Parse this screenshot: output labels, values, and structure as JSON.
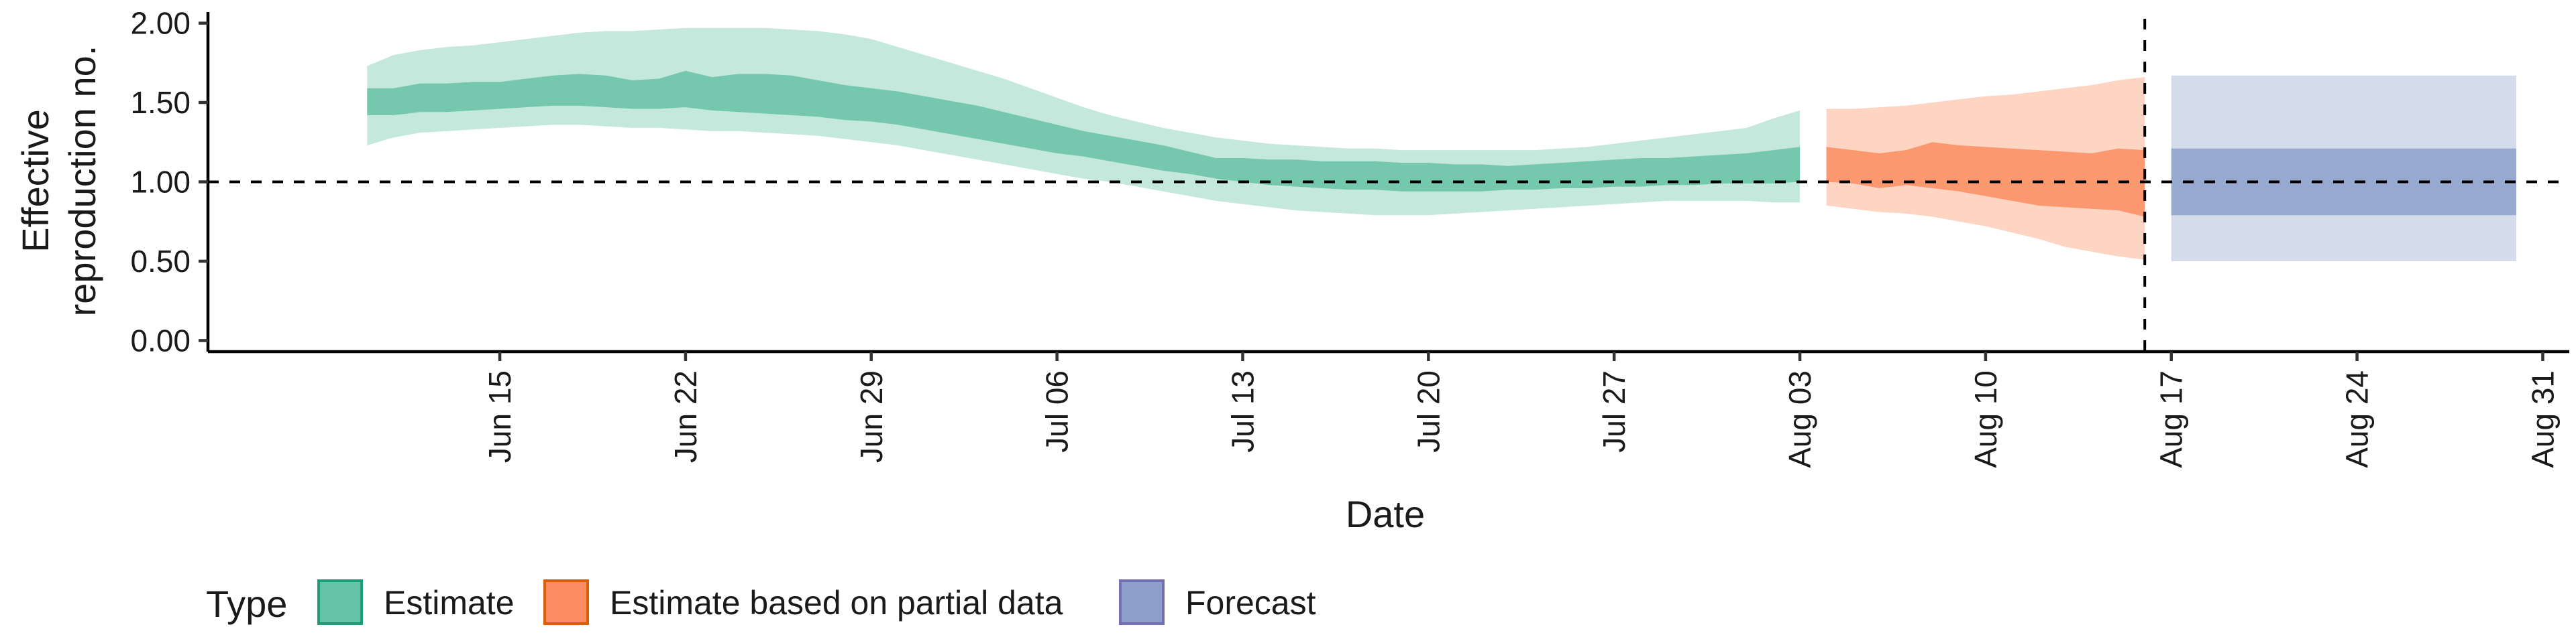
{
  "chart_data": {
    "type": "area",
    "xlabel": "Date",
    "ylabel": "Effective reproduction no.",
    "ylabel_lines": [
      "Effective",
      "reproduction no."
    ],
    "ylim": [
      -0.07,
      2.07
    ],
    "yticks": [
      0.0,
      0.5,
      1.0,
      1.5,
      2.0
    ],
    "ytick_labels": [
      "0.00",
      "0.50",
      "1.00",
      "1.50",
      "2.00"
    ],
    "xlim": [
      "2020-06-04",
      "2020-09-01"
    ],
    "xticks": [
      "2020-06-15",
      "2020-06-22",
      "2020-06-29",
      "2020-07-06",
      "2020-07-13",
      "2020-07-20",
      "2020-07-27",
      "2020-08-03",
      "2020-08-10",
      "2020-08-17",
      "2020-08-24",
      "2020-08-31"
    ],
    "xtick_labels": [
      "Jun 15",
      "Jun 22",
      "Jun 29",
      "Jul 06",
      "Jul 13",
      "Jul 20",
      "Jul 27",
      "Aug 03",
      "Aug 10",
      "Aug 17",
      "Aug 24",
      "Aug 31"
    ],
    "reference_hline": 1.0,
    "reference_vline": "2020-08-16",
    "grid": false,
    "legend": {
      "title": "Type",
      "position": "bottom-left",
      "entries": [
        "Estimate",
        "Estimate based on partial data",
        "Forecast"
      ]
    },
    "series": [
      {
        "name": "Estimate",
        "color": "#1b9e77",
        "fill": "#66c2a5",
        "x": [
          "2020-06-10",
          "2020-06-11",
          "2020-06-12",
          "2020-06-13",
          "2020-06-14",
          "2020-06-15",
          "2020-06-16",
          "2020-06-17",
          "2020-06-18",
          "2020-06-19",
          "2020-06-20",
          "2020-06-21",
          "2020-06-22",
          "2020-06-23",
          "2020-06-24",
          "2020-06-25",
          "2020-06-26",
          "2020-06-27",
          "2020-06-28",
          "2020-06-29",
          "2020-06-30",
          "2020-07-01",
          "2020-07-02",
          "2020-07-03",
          "2020-07-04",
          "2020-07-05",
          "2020-07-06",
          "2020-07-07",
          "2020-07-08",
          "2020-07-09",
          "2020-07-10",
          "2020-07-11",
          "2020-07-12",
          "2020-07-13",
          "2020-07-14",
          "2020-07-15",
          "2020-07-16",
          "2020-07-17",
          "2020-07-18",
          "2020-07-19",
          "2020-07-20",
          "2020-07-21",
          "2020-07-22",
          "2020-07-23",
          "2020-07-24",
          "2020-07-25",
          "2020-07-26",
          "2020-07-27",
          "2020-07-28",
          "2020-07-29",
          "2020-07-30",
          "2020-07-31",
          "2020-08-01",
          "2020-08-02",
          "2020-08-03"
        ],
        "lower_90": [
          1.23,
          1.28,
          1.31,
          1.32,
          1.33,
          1.34,
          1.35,
          1.36,
          1.36,
          1.35,
          1.34,
          1.34,
          1.33,
          1.32,
          1.32,
          1.31,
          1.3,
          1.29,
          1.27,
          1.25,
          1.23,
          1.2,
          1.17,
          1.14,
          1.11,
          1.08,
          1.05,
          1.02,
          1.0,
          0.97,
          0.94,
          0.91,
          0.88,
          0.86,
          0.84,
          0.82,
          0.81,
          0.8,
          0.79,
          0.79,
          0.79,
          0.8,
          0.81,
          0.82,
          0.83,
          0.84,
          0.85,
          0.86,
          0.87,
          0.88,
          0.88,
          0.88,
          0.88,
          0.87,
          0.87
        ],
        "upper_90": [
          1.73,
          1.8,
          1.83,
          1.85,
          1.86,
          1.88,
          1.9,
          1.92,
          1.94,
          1.95,
          1.95,
          1.96,
          1.97,
          1.97,
          1.97,
          1.97,
          1.96,
          1.95,
          1.93,
          1.9,
          1.85,
          1.8,
          1.75,
          1.7,
          1.65,
          1.59,
          1.53,
          1.47,
          1.42,
          1.38,
          1.34,
          1.31,
          1.28,
          1.26,
          1.24,
          1.23,
          1.22,
          1.21,
          1.21,
          1.2,
          1.2,
          1.2,
          1.2,
          1.2,
          1.2,
          1.21,
          1.22,
          1.24,
          1.26,
          1.28,
          1.3,
          1.32,
          1.34,
          1.4,
          1.45
        ],
        "lower_50": [
          1.42,
          1.42,
          1.44,
          1.44,
          1.45,
          1.46,
          1.47,
          1.48,
          1.48,
          1.47,
          1.46,
          1.46,
          1.47,
          1.45,
          1.44,
          1.43,
          1.42,
          1.41,
          1.39,
          1.38,
          1.36,
          1.33,
          1.3,
          1.27,
          1.24,
          1.21,
          1.18,
          1.16,
          1.13,
          1.1,
          1.07,
          1.05,
          1.02,
          1.0,
          0.98,
          0.97,
          0.96,
          0.95,
          0.95,
          0.94,
          0.94,
          0.94,
          0.94,
          0.95,
          0.95,
          0.96,
          0.96,
          0.97,
          0.97,
          0.98,
          0.98,
          0.99,
          0.99,
          0.99,
          1.0
        ],
        "upper_50": [
          1.59,
          1.59,
          1.62,
          1.62,
          1.63,
          1.63,
          1.65,
          1.67,
          1.68,
          1.67,
          1.64,
          1.65,
          1.7,
          1.66,
          1.68,
          1.68,
          1.67,
          1.64,
          1.61,
          1.59,
          1.57,
          1.54,
          1.51,
          1.48,
          1.44,
          1.4,
          1.36,
          1.32,
          1.29,
          1.26,
          1.23,
          1.19,
          1.15,
          1.15,
          1.14,
          1.14,
          1.13,
          1.13,
          1.13,
          1.12,
          1.12,
          1.11,
          1.11,
          1.1,
          1.11,
          1.12,
          1.13,
          1.14,
          1.15,
          1.15,
          1.16,
          1.17,
          1.18,
          1.2,
          1.22
        ]
      },
      {
        "name": "Estimate based on partial data",
        "color": "#d95f02",
        "fill": "#fc8d62",
        "x": [
          "2020-08-04",
          "2020-08-05",
          "2020-08-06",
          "2020-08-07",
          "2020-08-08",
          "2020-08-09",
          "2020-08-10",
          "2020-08-11",
          "2020-08-12",
          "2020-08-13",
          "2020-08-14",
          "2020-08-15",
          "2020-08-16"
        ],
        "lower_90": [
          0.85,
          0.83,
          0.81,
          0.8,
          0.78,
          0.75,
          0.72,
          0.68,
          0.64,
          0.59,
          0.56,
          0.53,
          0.51
        ],
        "upper_90": [
          1.46,
          1.46,
          1.47,
          1.48,
          1.5,
          1.52,
          1.54,
          1.55,
          1.57,
          1.59,
          1.61,
          1.64,
          1.66
        ],
        "lower_50": [
          1.0,
          0.99,
          0.96,
          0.98,
          0.96,
          0.94,
          0.91,
          0.88,
          0.85,
          0.84,
          0.83,
          0.82,
          0.78
        ],
        "upper_50": [
          1.22,
          1.2,
          1.18,
          1.2,
          1.25,
          1.23,
          1.22,
          1.21,
          1.2,
          1.19,
          1.18,
          1.21,
          1.2
        ]
      },
      {
        "name": "Forecast",
        "color": "#7570b3",
        "fill": "#8da0cb",
        "x": [
          "2020-08-17",
          "2020-08-30"
        ],
        "lower_90": [
          0.5,
          0.5
        ],
        "upper_90": [
          1.67,
          1.67
        ],
        "lower_50": [
          0.79,
          0.79
        ],
        "upper_50": [
          1.21,
          1.21
        ]
      }
    ]
  }
}
